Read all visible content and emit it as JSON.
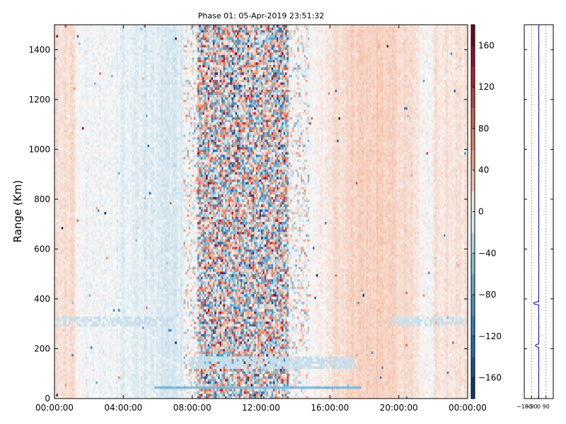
{
  "chart_data": {
    "type": "heatmap",
    "title": "Phase 01: 05-Apr-2019 23:51:32",
    "xlabel": "",
    "ylabel": "Range (Km)",
    "x_ticks": [
      "00:00:00",
      "04:00:00",
      "08:00:00",
      "12:00:00",
      "16:00:00",
      "20:00:00",
      "00:00:00"
    ],
    "x_range_hours": [
      0,
      24
    ],
    "y_ticks": [
      0,
      200,
      400,
      600,
      800,
      1000,
      1200,
      1400
    ],
    "y_range_km": [
      0,
      1500
    ],
    "colorbar": {
      "range": [
        -180,
        180
      ],
      "ticks": [
        160,
        120,
        80,
        40,
        0,
        -40,
        -80,
        -120,
        -160
      ],
      "tick_labels": [
        "160",
        "120",
        "80",
        "40",
        "0",
        "−40",
        "−80",
        "−120",
        "−160"
      ],
      "colormap": "RdBu_r"
    },
    "noisy_band_hours": [
      7.5,
      14.8
    ],
    "profile_panel": {
      "type": "line",
      "x_ticks": [
        -180,
        -90,
        0,
        90
      ],
      "x_tick_labels": [
        "−180",
        "−90",
        "0",
        "90"
      ],
      "x_range": [
        -180,
        180
      ],
      "y_range_km": [
        0,
        1500
      ],
      "line_color": "#0000cc",
      "mean_value": 0,
      "spikes": [
        {
          "range_km": 385,
          "value": -60
        },
        {
          "range_km": 215,
          "value": -40
        }
      ]
    }
  }
}
